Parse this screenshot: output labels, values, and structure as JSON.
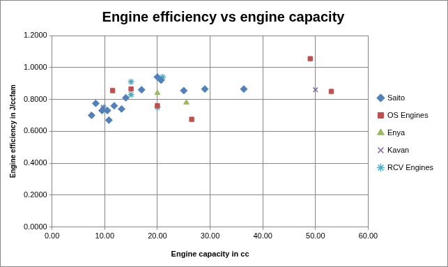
{
  "chart_data": {
    "type": "scatter",
    "title": "Engine efficiency vs engine capacity",
    "x_label": "Engine capacity in cc",
    "y_label": "Engine efficiency in J/ccfam",
    "xlim": [
      0,
      60
    ],
    "xticks": [
      {
        "value": 0,
        "label": "0.00"
      },
      {
        "value": 10,
        "label": "10.00"
      },
      {
        "value": 20,
        "label": "20.00"
      },
      {
        "value": 30,
        "label": "30.00"
      },
      {
        "value": 40,
        "label": "40.00"
      },
      {
        "value": 50,
        "label": "50.00"
      },
      {
        "value": 60,
        "label": "60.00"
      }
    ],
    "ylim": [
      0,
      1.2
    ],
    "yticks": [
      {
        "value": 0,
        "label": "0.0000"
      },
      {
        "value": 0.2,
        "label": "0.2000"
      },
      {
        "value": 0.4,
        "label": "0.4000"
      },
      {
        "value": 0.6,
        "label": "0.6000"
      },
      {
        "value": 0.8,
        "label": "0.8000"
      },
      {
        "value": 1,
        "label": "1.0000"
      },
      {
        "value": 1.2,
        "label": "1.2000"
      }
    ],
    "grid": true,
    "legend": "right",
    "series": [
      {
        "name": "Saito",
        "color": "#4f81bd",
        "marker": "diamond",
        "x": [
          7.5,
          8.3,
          9.5,
          10.5,
          10.8,
          11.8,
          13.2,
          14.0,
          17.0,
          20.0,
          20.7,
          25.0,
          29.0,
          36.4
        ],
        "values": [
          0.7,
          0.775,
          0.73,
          0.73,
          0.67,
          0.76,
          0.74,
          0.81,
          0.86,
          0.94,
          0.92,
          0.855,
          0.865,
          0.865
        ]
      },
      {
        "name": "OS Engines",
        "color": "#c0504d",
        "marker": "square",
        "x": [
          11.5,
          15.0,
          20.0,
          26.5,
          49.0,
          53.0
        ],
        "values": [
          0.855,
          0.865,
          0.76,
          0.675,
          1.055,
          0.85
        ]
      },
      {
        "name": "Enya",
        "color": "#9bbb59",
        "marker": "triangle",
        "x": [
          20.0,
          25.5
        ],
        "values": [
          0.84,
          0.78
        ]
      },
      {
        "name": "Kavan",
        "color": "#8064a2",
        "marker": "x",
        "x": [
          9.7,
          50.0
        ],
        "values": [
          0.75,
          0.86
        ]
      },
      {
        "name": "RCV Engines",
        "color": "#4bacc6",
        "marker": "star",
        "x": [
          9.8,
          15.0,
          15.0,
          20.0,
          21.0
        ],
        "values": [
          0.75,
          0.91,
          0.83,
          0.75,
          0.94
        ]
      }
    ]
  }
}
